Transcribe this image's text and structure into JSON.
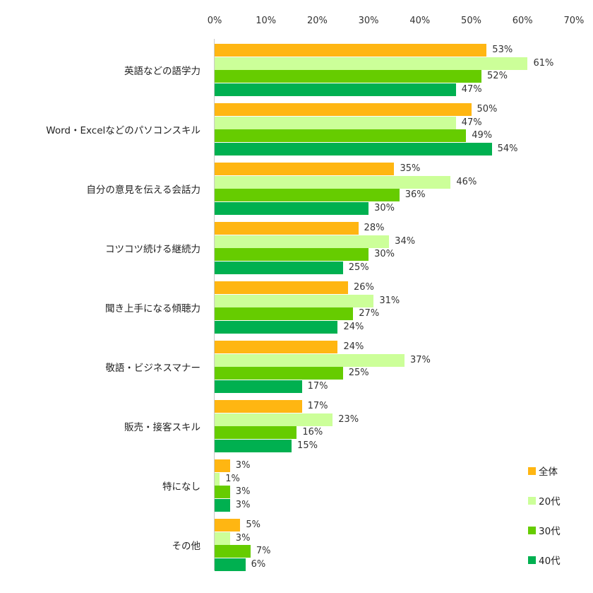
{
  "chart_data": {
    "type": "bar",
    "orientation": "horizontal",
    "title": "",
    "xlabel": "",
    "ylabel": "",
    "xlim": [
      0,
      70
    ],
    "x_ticks": [
      "0%",
      "10%",
      "20%",
      "30%",
      "40%",
      "50%",
      "60%",
      "70%"
    ],
    "grid": false,
    "legend_position": "bottom-right",
    "categories": [
      "英語などの語学力",
      "Word・Excelなどのパソコンスキル",
      "自分の意見を伝える会話力",
      "コツコツ続ける継続力",
      "聞き上手になる傾聴力",
      "敬語・ビジネスマナー",
      "販売・接客スキル",
      "特になし",
      "その他"
    ],
    "series": [
      {
        "name": "全体",
        "color": "#FFB612",
        "values": [
          53,
          50,
          35,
          28,
          26,
          24,
          17,
          3,
          5
        ]
      },
      {
        "name": "20代",
        "color": "#CCFF99",
        "values": [
          61,
          47,
          46,
          34,
          31,
          37,
          23,
          1,
          3
        ]
      },
      {
        "name": "30代",
        "color": "#66CC00",
        "values": [
          52,
          49,
          36,
          30,
          27,
          25,
          16,
          3,
          7
        ]
      },
      {
        "name": "40代",
        "color": "#00B050",
        "values": [
          47,
          54,
          30,
          25,
          24,
          17,
          15,
          3,
          6
        ]
      }
    ]
  }
}
